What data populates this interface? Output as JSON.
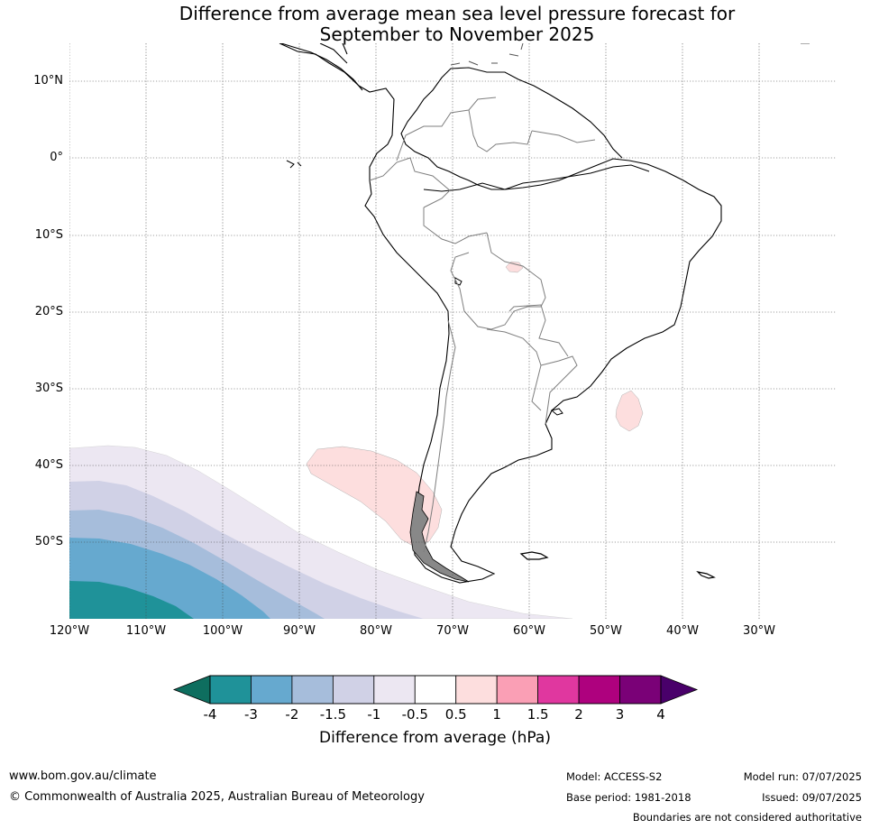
{
  "title_line1": "Difference from average mean sea level pressure forecast for",
  "title_line2": "September to November 2025",
  "lat_labels": [
    "10°N",
    "0°",
    "10°S",
    "20°S",
    "30°S",
    "40°S",
    "50°S"
  ],
  "lon_labels": [
    "120°W",
    "110°W",
    "100°W",
    "90°W",
    "80°W",
    "70°W",
    "60°W",
    "50°W",
    "40°W",
    "30°W"
  ],
  "colorbar": {
    "title": "Difference from average (hPa)",
    "ticks": [
      "-4",
      "-3",
      "-2",
      "-1.5",
      "-1",
      "-0.5",
      "0.5",
      "1",
      "1.5",
      "2",
      "3",
      "4"
    ],
    "colors": [
      "#0e6e5f",
      "#1f9299",
      "#66a9cf",
      "#a6bddb",
      "#d0d1e6",
      "#ece7f2",
      "#ffffff",
      "#fddede",
      "#fa9fb5",
      "#e0379f",
      "#ae017e",
      "#7a0177",
      "#49006a"
    ]
  },
  "footer": {
    "website": "www.bom.gov.au/climate",
    "copyright": "© Commonwealth of Australia 2025, Australian Bureau of Meteorology",
    "model": "Model: ACCESS-S2",
    "base_period": "Base period: 1981-2018",
    "model_run": "Model run: 07/07/2025",
    "issued": "Issued: 09/07/2025",
    "boundaries": "Boundaries are not considered authoritative"
  },
  "icons": [
    "left-arrow-icon",
    "right-arrow-icon"
  ]
}
